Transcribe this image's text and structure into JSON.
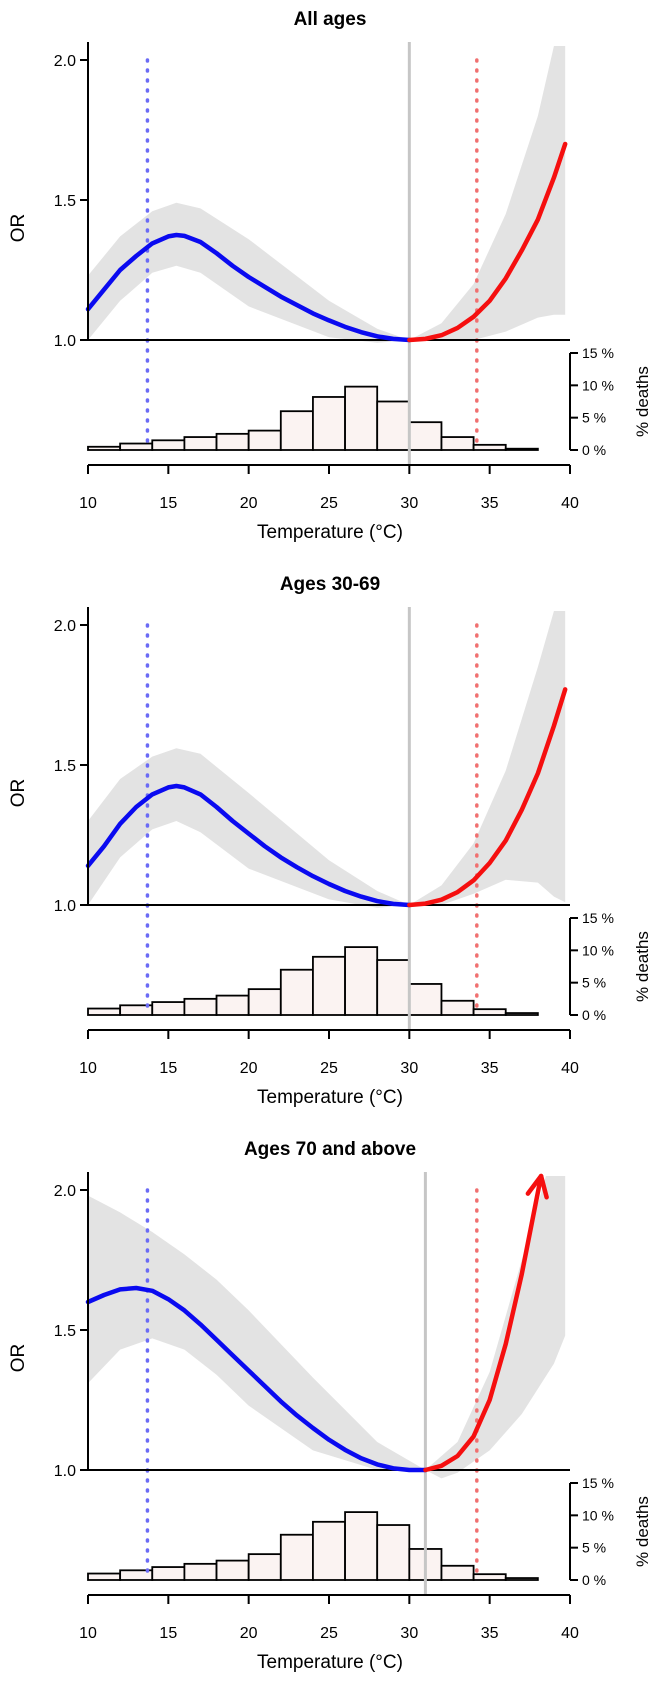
{
  "chart_data": [
    {
      "type": "line",
      "title": "All ages",
      "xlabel": "Temperature (°C)",
      "ylabel": "OR",
      "y2label": "% deaths",
      "xlim": [
        10,
        40
      ],
      "ylim": [
        1.0,
        2.05
      ],
      "xticks": [
        "10",
        "15",
        "20",
        "25",
        "30",
        "35",
        "40"
      ],
      "yticks": [
        "1.0",
        "1.5",
        "2.0"
      ],
      "y2ticks": [
        "0 %",
        "5 %",
        "10 %",
        "15 %"
      ],
      "mmt": 30.0,
      "cold_percentile": 13.7,
      "hot_percentile": 34.2,
      "cold_curve": {
        "x": [
          10,
          11,
          12,
          13,
          14,
          15,
          15.5,
          16,
          17,
          18,
          19,
          20,
          21,
          22,
          23,
          24,
          25,
          26,
          27,
          28,
          29,
          30
        ],
        "y": [
          1.11,
          1.18,
          1.25,
          1.3,
          1.345,
          1.37,
          1.375,
          1.372,
          1.35,
          1.31,
          1.265,
          1.225,
          1.19,
          1.155,
          1.125,
          1.095,
          1.07,
          1.047,
          1.028,
          1.013,
          1.004,
          1.0
        ]
      },
      "hot_curve": {
        "x": [
          30,
          31,
          32,
          33,
          34,
          35,
          36,
          37,
          38,
          39,
          39.7
        ],
        "y": [
          1.0,
          1.004,
          1.017,
          1.043,
          1.083,
          1.14,
          1.22,
          1.32,
          1.43,
          1.58,
          1.7
        ]
      },
      "ci_upper": {
        "x": [
          10,
          12,
          14,
          15.5,
          17,
          20,
          25,
          28,
          30,
          32,
          34,
          36,
          38,
          39,
          39.7
        ],
        "y": [
          1.23,
          1.37,
          1.46,
          1.49,
          1.47,
          1.36,
          1.14,
          1.04,
          1.0,
          1.06,
          1.2,
          1.45,
          1.8,
          2.05,
          2.05
        ]
      },
      "ci_lower": {
        "x": [
          10,
          12,
          14,
          15.5,
          17,
          20,
          25,
          28,
          30,
          32,
          34,
          36,
          38,
          39,
          39.7
        ],
        "y": [
          1.0,
          1.14,
          1.24,
          1.265,
          1.24,
          1.12,
          1.01,
          0.99,
          1.0,
          1.0,
          1.0,
          1.03,
          1.08,
          1.09,
          1.09
        ]
      },
      "histogram": {
        "bin_starts": [
          10,
          12,
          14,
          16,
          18,
          20,
          22,
          24,
          26,
          28,
          30,
          32,
          34,
          36
        ],
        "percent": [
          0.5,
          1.0,
          1.5,
          2.0,
          2.5,
          3.0,
          6.0,
          8.2,
          9.8,
          7.5,
          4.3,
          2.0,
          0.8,
          0.2
        ]
      }
    },
    {
      "type": "line",
      "title": "Ages 30-69",
      "xlabel": "Temperature (°C)",
      "ylabel": "OR",
      "y2label": "% deaths",
      "xlim": [
        10,
        40
      ],
      "ylim": [
        1.0,
        2.05
      ],
      "xticks": [
        "10",
        "15",
        "20",
        "25",
        "30",
        "35",
        "40"
      ],
      "yticks": [
        "1.0",
        "1.5",
        "2.0"
      ],
      "y2ticks": [
        "0 %",
        "5 %",
        "10 %",
        "15 %"
      ],
      "mmt": 30.0,
      "cold_percentile": 13.7,
      "hot_percentile": 34.2,
      "cold_curve": {
        "x": [
          10,
          11,
          12,
          13,
          14,
          15,
          15.5,
          16,
          17,
          18,
          19,
          20,
          21,
          22,
          23,
          24,
          25,
          26,
          27,
          28,
          29,
          30
        ],
        "y": [
          1.14,
          1.21,
          1.29,
          1.35,
          1.395,
          1.42,
          1.425,
          1.42,
          1.395,
          1.35,
          1.3,
          1.255,
          1.21,
          1.17,
          1.135,
          1.103,
          1.075,
          1.05,
          1.03,
          1.014,
          1.004,
          1.0
        ]
      },
      "hot_curve": {
        "x": [
          30,
          31,
          32,
          33,
          34,
          35,
          36,
          37,
          38,
          39,
          39.7
        ],
        "y": [
          1.0,
          1.005,
          1.019,
          1.046,
          1.088,
          1.15,
          1.23,
          1.34,
          1.47,
          1.64,
          1.77
        ]
      },
      "ci_upper": {
        "x": [
          10,
          12,
          14,
          15.5,
          17,
          20,
          25,
          28,
          30,
          32,
          34,
          36,
          38,
          39,
          39.7
        ],
        "y": [
          1.3,
          1.45,
          1.53,
          1.56,
          1.54,
          1.4,
          1.16,
          1.05,
          1.0,
          1.07,
          1.22,
          1.48,
          1.85,
          2.05,
          2.05
        ]
      },
      "ci_lower": {
        "x": [
          10,
          12,
          14,
          15.5,
          17,
          20,
          25,
          28,
          30,
          32,
          34,
          36,
          38,
          39,
          39.7
        ],
        "y": [
          1.0,
          1.17,
          1.27,
          1.3,
          1.26,
          1.13,
          1.02,
          0.99,
          1.0,
          1.0,
          1.04,
          1.09,
          1.08,
          1.03,
          1.01
        ]
      },
      "histogram": {
        "bin_starts": [
          10,
          12,
          14,
          16,
          18,
          20,
          22,
          24,
          26,
          28,
          30,
          32,
          34,
          36
        ],
        "percent": [
          1.0,
          1.5,
          2.0,
          2.5,
          3.0,
          4.0,
          7.0,
          9.0,
          10.5,
          8.5,
          4.8,
          2.2,
          0.9,
          0.3
        ]
      }
    },
    {
      "type": "line",
      "title": "Ages 70 and above",
      "xlabel": "Temperature (°C)",
      "ylabel": "OR",
      "y2label": "% deaths",
      "xlim": [
        10,
        40
      ],
      "ylim": [
        1.0,
        2.05
      ],
      "xticks": [
        "10",
        "15",
        "20",
        "25",
        "30",
        "35",
        "40"
      ],
      "yticks": [
        "1.0",
        "1.5",
        "2.0"
      ],
      "y2ticks": [
        "0 %",
        "5 %",
        "10 %",
        "15 %"
      ],
      "mmt": 31.0,
      "cold_percentile": 13.7,
      "hot_percentile": 34.2,
      "cold_curve": {
        "x": [
          10,
          11,
          12,
          13,
          14,
          15,
          16,
          17,
          18,
          19,
          20,
          21,
          22,
          23,
          24,
          25,
          26,
          27,
          28,
          29,
          30,
          31
        ],
        "y": [
          1.6,
          1.625,
          1.645,
          1.65,
          1.64,
          1.61,
          1.57,
          1.52,
          1.465,
          1.41,
          1.355,
          1.3,
          1.245,
          1.195,
          1.15,
          1.108,
          1.072,
          1.042,
          1.02,
          1.006,
          1.0,
          1.0
        ]
      },
      "hot_curve": {
        "x": [
          31,
          32,
          33,
          34,
          35,
          36,
          37,
          38.2
        ],
        "y": [
          1.0,
          1.015,
          1.05,
          1.12,
          1.25,
          1.45,
          1.7,
          2.05
        ]
      },
      "ci_upper": {
        "x": [
          10,
          12,
          14,
          16,
          18,
          20,
          24,
          28,
          31,
          33,
          35,
          37,
          38.5,
          39.7
        ],
        "y": [
          1.98,
          1.92,
          1.85,
          1.77,
          1.68,
          1.57,
          1.33,
          1.1,
          1.0,
          1.1,
          1.35,
          1.75,
          2.05,
          2.05
        ]
      },
      "ci_lower": {
        "x": [
          10,
          12,
          14,
          16,
          18,
          20,
          24,
          28,
          31,
          32,
          33,
          35,
          37,
          39,
          39.7
        ],
        "y": [
          1.31,
          1.43,
          1.47,
          1.43,
          1.34,
          1.23,
          1.07,
          1.0,
          1.0,
          0.97,
          0.99,
          1.07,
          1.2,
          1.38,
          1.48
        ]
      },
      "histogram": {
        "bin_starts": [
          10,
          12,
          14,
          16,
          18,
          20,
          22,
          24,
          26,
          28,
          30,
          32,
          34,
          36
        ],
        "percent": [
          1.0,
          1.5,
          2.0,
          2.5,
          3.0,
          4.0,
          7.0,
          9.0,
          10.5,
          8.5,
          4.8,
          2.2,
          0.9,
          0.3
        ]
      }
    }
  ]
}
